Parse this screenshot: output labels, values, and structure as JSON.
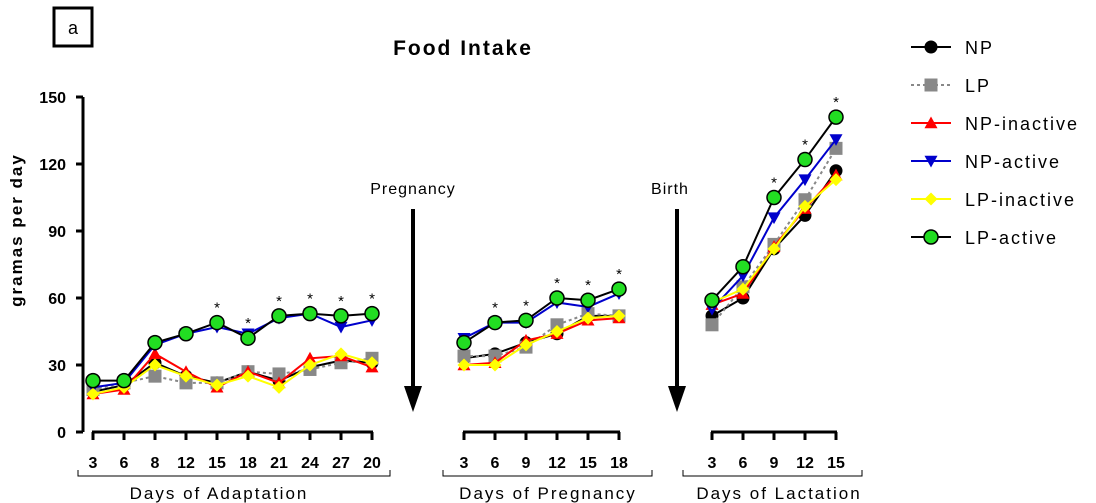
{
  "panel_label": "a",
  "chart_data": {
    "type": "line",
    "title": "Food Intake",
    "ylabel": "gramas per day",
    "ylim": [
      0,
      150
    ],
    "yticks": [
      "0",
      "30",
      "60",
      "90",
      "120",
      "150"
    ],
    "segments": [
      {
        "name": "Days of Adaptation",
        "categories": [
          "3",
          "6",
          "8",
          "12",
          "15",
          "18",
          "21",
          "24",
          "27",
          "20"
        ]
      },
      {
        "name": "Days of Pregnancy",
        "categories": [
          "3",
          "6",
          "9",
          "12",
          "15",
          "18"
        ]
      },
      {
        "name": "Days of Lactation",
        "categories": [
          "3",
          "6",
          "9",
          "12",
          "15"
        ]
      }
    ],
    "annotations": [
      {
        "text": "Pregnancy",
        "between": "Days of Adaptation|Days of Pregnancy"
      },
      {
        "text": "Birth",
        "between": "Days of Pregnancy|Days of Lactation"
      }
    ],
    "series": [
      {
        "name": "NP",
        "color": "#000000",
        "marker": "circle",
        "dash": "solid",
        "values": [
          [
            18,
            21,
            31,
            25,
            22,
            27,
            23,
            29,
            32,
            31
          ],
          [
            33,
            35,
            40,
            44,
            52,
            52
          ],
          [
            52,
            60,
            82,
            97,
            117
          ]
        ]
      },
      {
        "name": "LP",
        "color": "#888888",
        "marker": "square",
        "dash": "dotted",
        "values": [
          [
            19,
            22,
            25,
            22,
            22,
            27,
            26,
            28,
            31,
            33
          ],
          [
            34,
            34,
            38,
            48,
            53,
            52
          ],
          [
            48,
            65,
            84,
            104,
            127
          ]
        ]
      },
      {
        "name": "NP-inactive",
        "color": "#ff0000",
        "marker": "triangle-up",
        "dash": "solid",
        "values": [
          [
            17,
            19,
            35,
            27,
            20,
            27,
            22,
            33,
            34,
            29
          ],
          [
            30,
            31,
            41,
            44,
            50,
            51
          ],
          [
            57,
            62,
            83,
            100,
            115
          ]
        ]
      },
      {
        "name": "NP-active",
        "color": "#0000cc",
        "marker": "triangle-down",
        "dash": "solid",
        "values": [
          [
            20,
            22,
            39,
            44,
            47,
            44,
            51,
            53,
            47,
            50
          ],
          [
            42,
            49,
            49,
            58,
            56,
            62
          ],
          [
            55,
            70,
            96,
            113,
            131
          ]
        ]
      },
      {
        "name": "LP-inactive",
        "color": "#ffff00",
        "marker": "diamond",
        "dash": "solid",
        "values": [
          [
            17,
            20,
            30,
            25,
            21,
            25,
            20,
            30,
            35,
            31
          ],
          [
            30,
            30,
            39,
            45,
            51,
            52
          ],
          [
            58,
            64,
            82,
            101,
            113
          ]
        ]
      },
      {
        "name": "LP-active",
        "color": "#22dd22",
        "marker": "circle-green",
        "dash": "solid",
        "values": [
          [
            23,
            23,
            40,
            44,
            49,
            42,
            52,
            53,
            52,
            53
          ],
          [
            40,
            49,
            50,
            60,
            59,
            64
          ],
          [
            59,
            74,
            105,
            122,
            141
          ]
        ]
      }
    ],
    "significance": [
      {
        "segment": 0,
        "indices": [
          4,
          5,
          6,
          7,
          8,
          9
        ],
        "symbol": "*"
      },
      {
        "segment": 1,
        "indices": [
          1,
          2,
          3,
          4,
          5
        ],
        "symbol": "*"
      },
      {
        "segment": 2,
        "indices": [
          2,
          3,
          4
        ],
        "symbol": "*"
      }
    ]
  }
}
